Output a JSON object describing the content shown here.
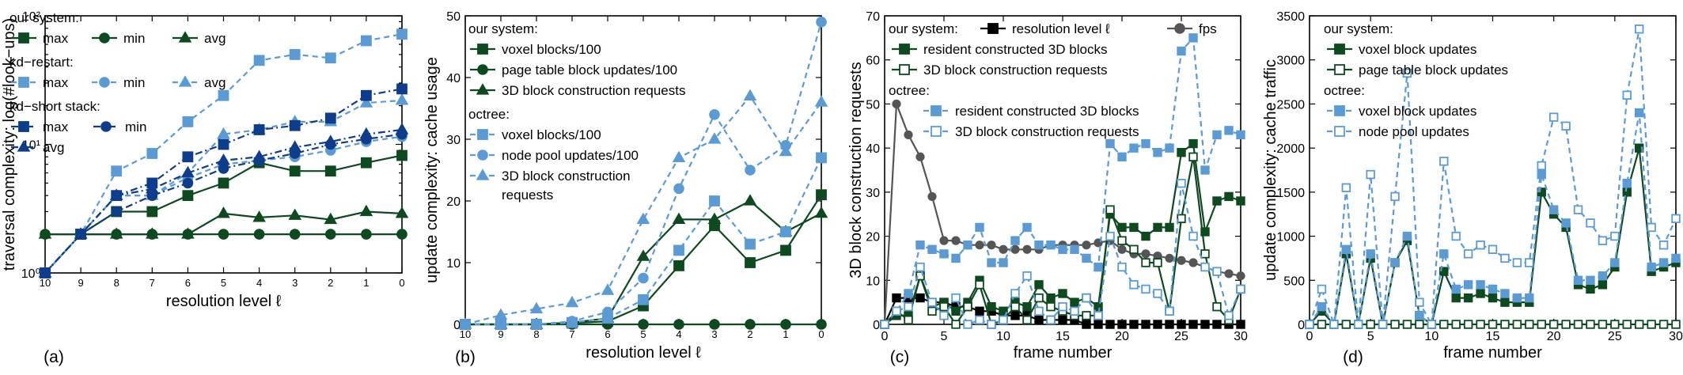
{
  "colors": {
    "dark_green": "#0d4a1f",
    "navy": "#0d3d8c",
    "light_blue": "#5b9bd5",
    "mid_blue": "#4a88d0",
    "black": "#000000",
    "gray": "#555555"
  },
  "chart_data": [
    {
      "type": "line",
      "panel_label": "(a)",
      "xlabel": "resolution level ℓ",
      "ylabel": "traversal complexity: log(#look−ups)",
      "y_scale": "log",
      "ylim": [
        1,
        100
      ],
      "y_tick_labels": [
        "10⁰",
        "10¹",
        "10²"
      ],
      "x": [
        10,
        9,
        8,
        7,
        6,
        5,
        4,
        3,
        2,
        1,
        0
      ],
      "x_tick_labels": [
        "10",
        "9",
        "8",
        "7",
        "6",
        "5",
        "4",
        "3",
        "2",
        "1",
        "0"
      ],
      "x_reversed": true,
      "legend_groups": [
        {
          "title": "our system:",
          "items": [
            "max",
            "min",
            "avg"
          ]
        },
        {
          "title": "kd−restart:",
          "items": [
            "max",
            "min",
            "avg"
          ]
        },
        {
          "title": "kd−short stack:",
          "items": [
            "max",
            "min",
            "avg"
          ]
        }
      ],
      "series": [
        {
          "group": "our system",
          "name": "max",
          "color": "#0d4a1f",
          "marker": "square",
          "filled": true,
          "dash": "solid",
          "values": [
            1,
            2,
            3,
            3,
            4,
            5,
            7.2,
            6.2,
            6.2,
            7.2,
            8.2
          ]
        },
        {
          "group": "our system",
          "name": "min",
          "color": "#0d4a1f",
          "marker": "circle",
          "filled": true,
          "dash": "solid",
          "values": [
            2,
            2,
            2,
            2,
            2,
            2,
            2,
            2,
            2,
            2,
            2
          ]
        },
        {
          "group": "our system",
          "name": "avg",
          "color": "#0d4a1f",
          "marker": "triangle",
          "filled": true,
          "dash": "solid",
          "values": [
            2,
            2,
            2,
            2,
            2,
            2.9,
            2.7,
            2.8,
            2.6,
            3,
            2.9
          ]
        },
        {
          "group": "kd−restart",
          "name": "max",
          "color": "#5b9bd5",
          "marker": "square",
          "filled": true,
          "dash": "dashed",
          "values": [
            1,
            2,
            6.2,
            8.5,
            15,
            24,
            45,
            50,
            47,
            64,
            72
          ]
        },
        {
          "group": "kd−restart",
          "name": "min",
          "color": "#5b9bd5",
          "marker": "circle",
          "filled": true,
          "dash": "dashed",
          "values": [
            1,
            2,
            4,
            4,
            5.5,
            7,
            7.5,
            8,
            9,
            10.5,
            11.5
          ]
        },
        {
          "group": "kd−restart",
          "name": "avg",
          "color": "#5b9bd5",
          "marker": "triangle",
          "filled": true,
          "dash": "dashed",
          "values": [
            1,
            2,
            4,
            4,
            6,
            12,
            13,
            15,
            15,
            21,
            22
          ]
        },
        {
          "group": "kd−short stack",
          "name": "max",
          "color": "#0d3d8c",
          "marker": "square",
          "filled": true,
          "dash": "dashdot",
          "values": [
            1,
            2,
            4,
            5,
            8,
            10,
            13,
            14,
            16,
            24,
            27
          ]
        },
        {
          "group": "kd−short stack",
          "name": "min",
          "color": "#0d3d8c",
          "marker": "circle",
          "filled": true,
          "dash": "dashdot",
          "values": [
            1,
            2,
            3,
            4,
            5,
            6.5,
            7.5,
            8.5,
            10,
            11,
            12
          ]
        },
        {
          "group": "kd−short stack",
          "name": "avg",
          "color": "#0d3d8c",
          "marker": "triangle",
          "filled": true,
          "dash": "dashdot",
          "values": [
            1,
            2,
            4,
            4.5,
            6,
            7.5,
            8,
            9.5,
            10.5,
            12,
            13
          ]
        }
      ]
    },
    {
      "type": "line",
      "panel_label": "(b)",
      "xlabel": "resolution level ℓ",
      "ylabel": "update complexity: cache usage",
      "ylim": [
        0,
        50
      ],
      "y_ticks": [
        0,
        10,
        20,
        30,
        40,
        50
      ],
      "x": [
        10,
        9,
        8,
        7,
        6,
        5,
        4,
        3,
        2,
        1,
        0
      ],
      "x_tick_labels": [
        "10",
        "9",
        "8",
        "7",
        "6",
        "5",
        "4",
        "3",
        "2",
        "1",
        "0"
      ],
      "x_reversed": true,
      "legend_groups": [
        {
          "title": "our system:",
          "items": [
            "voxel blocks/100",
            "page table block updates/100",
            "3D block construction requests"
          ]
        },
        {
          "title": "octree:",
          "items": [
            "voxel blocks/100",
            "node pool updates/100",
            "3D block construction",
            "requests"
          ]
        }
      ],
      "series": [
        {
          "group": "our system",
          "name": "voxel blocks/100",
          "color": "#0d4a1f",
          "marker": "square",
          "filled": true,
          "dash": "solid",
          "values": [
            0,
            0,
            0,
            0.2,
            0.5,
            3,
            9.5,
            16,
            10,
            12,
            21
          ]
        },
        {
          "group": "our system",
          "name": "page table block updates/100",
          "color": "#0d4a1f",
          "marker": "circle",
          "filled": true,
          "dash": "solid",
          "values": [
            0,
            0,
            0,
            0,
            0,
            0,
            0,
            0,
            0,
            0,
            0
          ]
        },
        {
          "group": "our system",
          "name": "3D block construction requests",
          "color": "#0d4a1f",
          "marker": "triangle",
          "filled": true,
          "dash": "solid",
          "values": [
            0,
            0,
            0,
            0.3,
            1,
            11,
            17,
            17,
            20,
            15,
            18
          ]
        },
        {
          "group": "octree",
          "name": "voxel blocks/100",
          "color": "#5b9bd5",
          "marker": "square",
          "filled": true,
          "dash": "dashed",
          "values": [
            0,
            0,
            0,
            0.3,
            1,
            4,
            12,
            20,
            13,
            15,
            27
          ]
        },
        {
          "group": "octree",
          "name": "node pool updates/100",
          "color": "#5b9bd5",
          "marker": "circle",
          "filled": true,
          "dash": "dashed",
          "values": [
            0,
            0,
            0,
            0.5,
            2,
            7.5,
            22,
            34,
            25,
            29,
            49
          ]
        },
        {
          "group": "octree",
          "name": "3D block construction requests",
          "color": "#5b9bd5",
          "marker": "triangle",
          "filled": true,
          "dash": "dashed",
          "values": [
            0,
            1.5,
            2.5,
            3.5,
            5.5,
            17,
            27,
            30,
            37,
            28,
            36
          ]
        }
      ]
    },
    {
      "type": "line",
      "panel_label": "(c)",
      "xlabel": "frame number",
      "ylabel": "3D block construction requests",
      "ylim": [
        0,
        70
      ],
      "y_ticks": [
        0,
        10,
        20,
        30,
        40,
        50,
        60,
        70
      ],
      "xlim": [
        0,
        30
      ],
      "x_ticks": [
        0,
        5,
        10,
        15,
        20,
        25,
        30
      ],
      "x": [
        0,
        1,
        2,
        3,
        4,
        5,
        6,
        7,
        8,
        9,
        10,
        11,
        12,
        13,
        14,
        15,
        16,
        17,
        18,
        19,
        20,
        21,
        22,
        23,
        24,
        25,
        26,
        27,
        28,
        29,
        30
      ],
      "legend_groups": [
        {
          "title": "our system:",
          "items": [
            "resolution level ℓ",
            "fps",
            "resident constructed 3D blocks",
            "3D block construction requests"
          ]
        },
        {
          "title": "octree:",
          "items": [
            "resident constructed 3D blocks",
            "3D block construction requests"
          ]
        }
      ],
      "series": [
        {
          "group": "our system",
          "name": "resolution level ℓ",
          "color": "#000000",
          "marker": "square",
          "filled": true,
          "dash": "solid",
          "values": [
            0,
            6,
            6,
            6,
            5,
            5,
            4,
            4,
            3,
            3,
            2,
            2,
            2,
            1,
            1,
            1,
            1,
            0,
            0,
            0,
            0,
            0,
            0,
            0,
            0,
            0,
            0,
            0,
            0,
            0,
            0
          ]
        },
        {
          "group": "our system",
          "name": "fps",
          "color": "#555555",
          "marker": "circle",
          "filled": true,
          "dash": "solid",
          "values": [
            0,
            50,
            43,
            38,
            29,
            19,
            19,
            18,
            18,
            18,
            17,
            17,
            17,
            17,
            18,
            18,
            18,
            18,
            18.5,
            19,
            17,
            16,
            16,
            15.5,
            15,
            14.5,
            14,
            13,
            12,
            11.5,
            11
          ]
        },
        {
          "group": "our system",
          "name": "resident constructed 3D blocks",
          "color": "#0d4a1f",
          "marker": "square",
          "filled": true,
          "dash": "solid",
          "values": [
            0,
            2,
            2,
            11,
            4,
            5,
            3,
            5,
            10,
            4,
            3,
            5,
            4,
            9,
            6,
            7,
            5,
            6,
            4,
            25,
            22,
            22,
            20,
            22,
            22,
            39,
            41,
            21,
            28,
            29,
            28
          ]
        },
        {
          "group": "our system",
          "name": "3D block construction requests",
          "color": "#0d4a1f",
          "marker": "square",
          "filled": false,
          "dash": "solid",
          "values": [
            0,
            3,
            1,
            11,
            3,
            4,
            0,
            4,
            9,
            0,
            1,
            4,
            1,
            6,
            4,
            3,
            2,
            2,
            2,
            26,
            19,
            17,
            14,
            14,
            3,
            24,
            38,
            16,
            4,
            1,
            8
          ]
        },
        {
          "group": "octree",
          "name": "resident constructed 3D blocks",
          "color": "#5b9bd5",
          "marker": "square",
          "filled": true,
          "dash": "dashed",
          "values": [
            0,
            3,
            7,
            18,
            17,
            16,
            15,
            18,
            22,
            14,
            14,
            19,
            22,
            18,
            18,
            17,
            17,
            15,
            13,
            41,
            38,
            40,
            41,
            39,
            40,
            62,
            65,
            35,
            43,
            44,
            43
          ]
        },
        {
          "group": "octree",
          "name": "3D block construction requests",
          "color": "#5b9bd5",
          "marker": "square",
          "filled": false,
          "dash": "dashed",
          "values": [
            0,
            3,
            4,
            13,
            5,
            2,
            6,
            0,
            1,
            0,
            1,
            7,
            11,
            3,
            1,
            4,
            3,
            6,
            2,
            20,
            13,
            9,
            8,
            7,
            3,
            32,
            20,
            13,
            12,
            2,
            8
          ]
        }
      ]
    },
    {
      "type": "line",
      "panel_label": "(d)",
      "xlabel": "frame number",
      "ylabel": "update complexity: cache traffic",
      "ylim": [
        0,
        3500
      ],
      "y_ticks": [
        0,
        500,
        1000,
        1500,
        2000,
        2500,
        3000,
        3500
      ],
      "xlim": [
        0,
        30
      ],
      "x_ticks": [
        0,
        5,
        10,
        15,
        20,
        25,
        30
      ],
      "x": [
        0,
        1,
        2,
        3,
        4,
        5,
        6,
        7,
        8,
        9,
        10,
        11,
        12,
        13,
        14,
        15,
        16,
        17,
        18,
        19,
        20,
        21,
        22,
        23,
        24,
        25,
        26,
        27,
        28,
        29,
        30
      ],
      "legend_groups": [
        {
          "title": "our system:",
          "items": [
            "voxel block updates",
            "page table block updates"
          ]
        },
        {
          "title": "octree:",
          "items": [
            "voxel block updates",
            "node pool updates"
          ]
        }
      ],
      "series": [
        {
          "group": "our system",
          "name": "voxel block updates",
          "color": "#0d4a1f",
          "marker": "square",
          "filled": true,
          "dash": "solid",
          "values": [
            0,
            150,
            0,
            800,
            0,
            750,
            0,
            700,
            950,
            100,
            0,
            600,
            300,
            300,
            350,
            300,
            250,
            250,
            250,
            1500,
            1250,
            1100,
            450,
            400,
            450,
            650,
            1500,
            2000,
            600,
            650,
            700
          ]
        },
        {
          "group": "our system",
          "name": "page table block updates",
          "color": "#0d4a1f",
          "marker": "square",
          "filled": false,
          "dash": "solid",
          "values": [
            0,
            0,
            0,
            0,
            0,
            0,
            0,
            0,
            0,
            0,
            0,
            0,
            0,
            0,
            0,
            0,
            0,
            0,
            0,
            0,
            0,
            0,
            0,
            0,
            0,
            0,
            0,
            0,
            0,
            0,
            0
          ]
        },
        {
          "group": "octree",
          "name": "voxel block updates",
          "color": "#5b9bd5",
          "marker": "square",
          "filled": true,
          "dash": "dashed",
          "values": [
            0,
            200,
            0,
            850,
            0,
            800,
            0,
            700,
            1000,
            100,
            0,
            800,
            400,
            450,
            450,
            400,
            350,
            300,
            300,
            1700,
            1300,
            1150,
            500,
            500,
            550,
            700,
            1600,
            2400,
            650,
            700,
            750
          ]
        },
        {
          "group": "octree",
          "name": "node pool updates",
          "color": "#5b9bd5",
          "marker": "square",
          "filled": false,
          "dash": "dashed",
          "values": [
            0,
            400,
            0,
            1550,
            0,
            1700,
            0,
            1450,
            2850,
            250,
            0,
            1850,
            1000,
            800,
            900,
            850,
            750,
            700,
            700,
            1800,
            2350,
            2250,
            1300,
            1150,
            950,
            1000,
            2600,
            3350,
            1100,
            900,
            1200
          ]
        }
      ]
    }
  ]
}
